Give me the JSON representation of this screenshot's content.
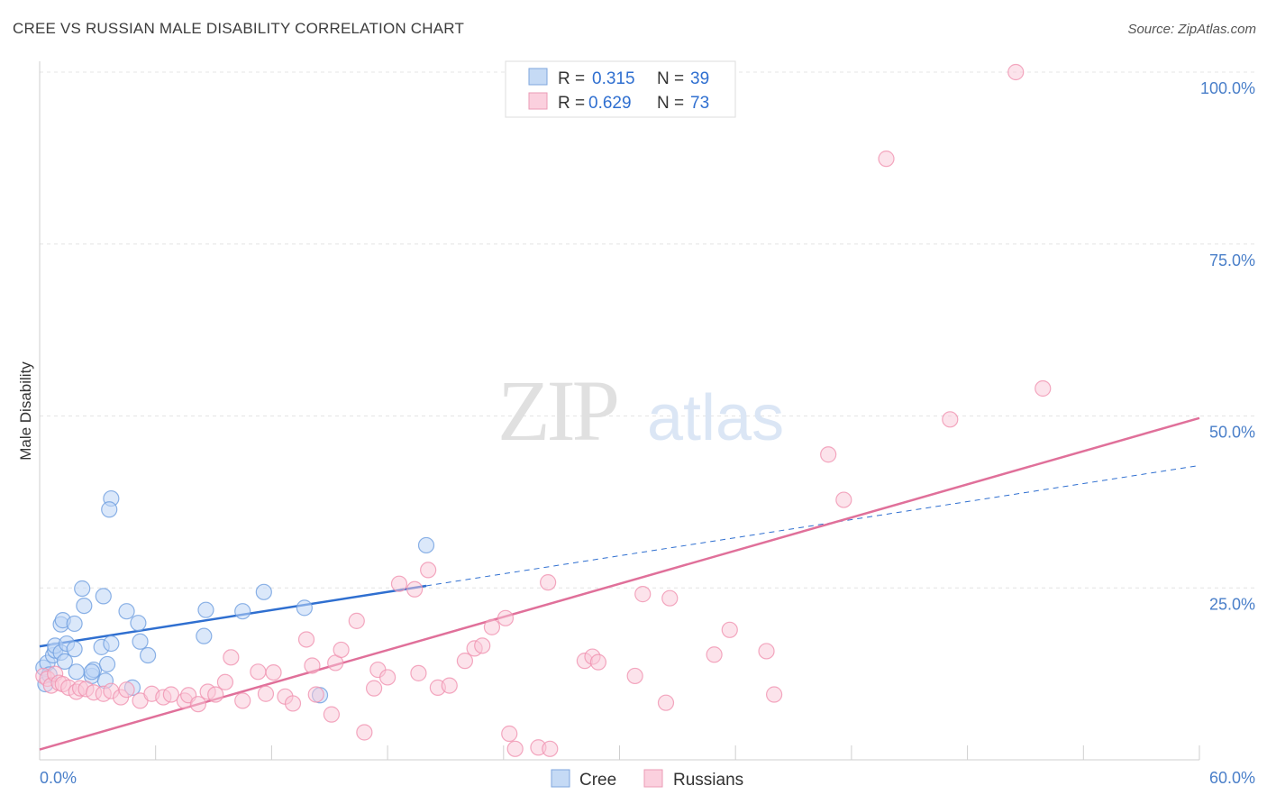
{
  "title": "CREE VS RUSSIAN MALE DISABILITY CORRELATION CHART",
  "source": "Source: ZipAtlas.com",
  "watermark": {
    "zip": "ZIP",
    "atlas": "atlas"
  },
  "legend_top": {
    "rows": [
      {
        "r_label": "R =",
        "r_value": "0.315",
        "n_label": "N =",
        "n_value": "39"
      },
      {
        "r_label": "R =",
        "r_value": "0.629",
        "n_label": "N =",
        "n_value": "73"
      }
    ]
  },
  "chart_data": {
    "type": "scatter",
    "title": "CREE VS RUSSIAN MALE DISABILITY CORRELATION CHART",
    "xlabel": "",
    "ylabel": "Male Disability",
    "xlim": [
      0,
      60
    ],
    "ylim": [
      0,
      100
    ],
    "x_tick_labels": [
      "0.0%",
      "60.0%"
    ],
    "y_tick_labels": [
      "25.0%",
      "50.0%",
      "75.0%",
      "100.0%"
    ],
    "y_ticks": [
      25,
      50,
      75,
      100
    ],
    "grid": true,
    "legend_position": "top-center",
    "colors": {
      "cree": "#6f9fe0",
      "russians": "#f092b0",
      "cree_line": "#2f6fd0",
      "russians_line": "#e0709a"
    },
    "series": [
      {
        "name": "Cree",
        "points": [
          [
            0.2,
            13.4
          ],
          [
            0.3,
            11.0
          ],
          [
            0.4,
            14.1
          ],
          [
            0.5,
            12.4
          ],
          [
            0.7,
            15.2
          ],
          [
            0.8,
            15.9
          ],
          [
            0.8,
            16.6
          ],
          [
            1.1,
            15.6
          ],
          [
            1.1,
            19.7
          ],
          [
            1.2,
            20.3
          ],
          [
            1.3,
            14.3
          ],
          [
            1.4,
            16.9
          ],
          [
            1.8,
            19.8
          ],
          [
            1.8,
            16.1
          ],
          [
            1.9,
            12.8
          ],
          [
            2.2,
            24.9
          ],
          [
            2.3,
            22.4
          ],
          [
            2.7,
            12.2
          ],
          [
            2.8,
            13.1
          ],
          [
            3.2,
            16.4
          ],
          [
            3.3,
            23.8
          ],
          [
            3.4,
            11.5
          ],
          [
            3.5,
            13.9
          ],
          [
            3.7,
            38.0
          ],
          [
            3.7,
            16.9
          ],
          [
            4.5,
            21.6
          ],
          [
            4.8,
            10.5
          ],
          [
            5.1,
            19.9
          ],
          [
            5.2,
            17.2
          ],
          [
            5.6,
            15.2
          ],
          [
            8.5,
            18.0
          ],
          [
            8.6,
            21.8
          ],
          [
            10.5,
            21.6
          ],
          [
            11.6,
            24.4
          ],
          [
            13.7,
            22.1
          ],
          [
            14.5,
            9.4
          ],
          [
            20.0,
            31.2
          ],
          [
            3.6,
            36.4
          ],
          [
            2.7,
            12.8
          ]
        ],
        "trend": {
          "x": [
            0,
            20
          ],
          "y": [
            16.5,
            25.3
          ],
          "dashed_to": [
            60,
            42.8
          ]
        }
      },
      {
        "name": "Russians",
        "points": [
          [
            0.2,
            12.2
          ],
          [
            0.4,
            11.8
          ],
          [
            0.6,
            10.8
          ],
          [
            0.8,
            12.5
          ],
          [
            1.0,
            11.2
          ],
          [
            1.2,
            11.0
          ],
          [
            1.5,
            10.5
          ],
          [
            1.9,
            9.9
          ],
          [
            2.1,
            10.4
          ],
          [
            2.4,
            10.3
          ],
          [
            2.8,
            9.8
          ],
          [
            3.3,
            9.6
          ],
          [
            3.7,
            10.0
          ],
          [
            4.2,
            9.1
          ],
          [
            4.5,
            10.2
          ],
          [
            5.2,
            8.6
          ],
          [
            5.8,
            9.6
          ],
          [
            6.4,
            9.1
          ],
          [
            6.8,
            9.5
          ],
          [
            7.5,
            8.6
          ],
          [
            7.7,
            9.4
          ],
          [
            8.2,
            8.1
          ],
          [
            8.7,
            9.9
          ],
          [
            9.1,
            9.5
          ],
          [
            9.6,
            11.3
          ],
          [
            9.9,
            14.9
          ],
          [
            10.5,
            8.6
          ],
          [
            11.3,
            12.8
          ],
          [
            11.7,
            9.6
          ],
          [
            12.1,
            12.7
          ],
          [
            12.7,
            9.2
          ],
          [
            13.1,
            8.2
          ],
          [
            13.8,
            17.5
          ],
          [
            14.1,
            13.7
          ],
          [
            14.3,
            9.5
          ],
          [
            15.1,
            6.6
          ],
          [
            15.3,
            14.1
          ],
          [
            15.6,
            16.0
          ],
          [
            16.4,
            20.2
          ],
          [
            16.8,
            4.0
          ],
          [
            17.3,
            10.4
          ],
          [
            17.5,
            13.1
          ],
          [
            18.0,
            12.0
          ],
          [
            18.6,
            25.6
          ],
          [
            19.4,
            24.8
          ],
          [
            19.6,
            12.6
          ],
          [
            20.1,
            27.6
          ],
          [
            20.6,
            10.5
          ],
          [
            21.2,
            10.8
          ],
          [
            22.0,
            14.4
          ],
          [
            22.5,
            16.2
          ],
          [
            22.9,
            16.6
          ],
          [
            23.4,
            19.3
          ],
          [
            24.1,
            20.6
          ],
          [
            24.3,
            3.8
          ],
          [
            24.6,
            1.6
          ],
          [
            25.8,
            1.8
          ],
          [
            26.4,
            1.6
          ],
          [
            26.3,
            25.8
          ],
          [
            28.2,
            14.4
          ],
          [
            28.6,
            15.0
          ],
          [
            28.9,
            14.2
          ],
          [
            30.8,
            12.2
          ],
          [
            31.2,
            24.1
          ],
          [
            32.4,
            8.3
          ],
          [
            32.6,
            23.5
          ],
          [
            34.9,
            15.3
          ],
          [
            35.7,
            18.9
          ],
          [
            37.6,
            15.8
          ],
          [
            38.0,
            9.5
          ],
          [
            41.6,
            37.8
          ],
          [
            43.8,
            87.4
          ],
          [
            47.1,
            49.5
          ]
        ],
        "extra_points": [
          [
            40.8,
            44.4
          ],
          [
            50.5,
            100.0
          ],
          [
            51.9,
            54.0
          ]
        ],
        "trend": {
          "x": [
            0,
            60
          ],
          "y": [
            1.5,
            49.7
          ]
        }
      }
    ]
  },
  "bottom_legend": {
    "items": [
      {
        "label": "Cree"
      },
      {
        "label": "Russians"
      }
    ]
  }
}
